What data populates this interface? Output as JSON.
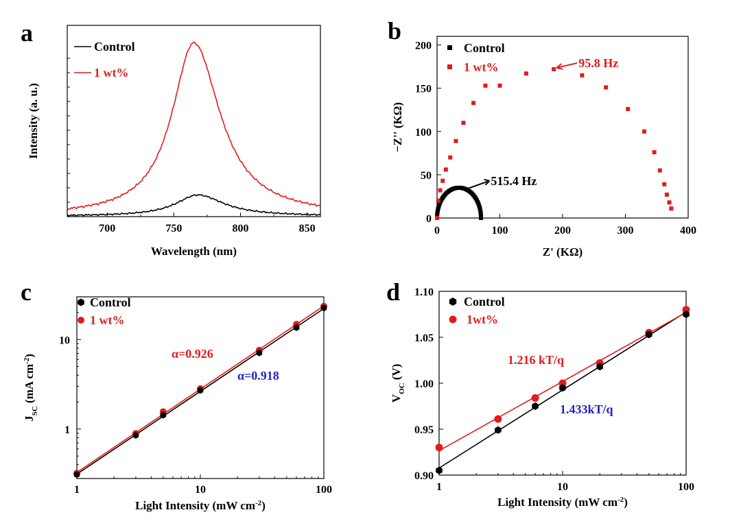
{
  "panels": {
    "a": "a",
    "b": "b",
    "c": "c",
    "d": "d"
  },
  "colors": {
    "control": "#000000",
    "wt": "#e31a1c",
    "blue": "#1f1fcc"
  },
  "chart_data": [
    {
      "id": "a",
      "type": "line",
      "xlabel": "Wavelength (nm)",
      "ylabel": "Intensity (a. u.)",
      "xlim": [
        670,
        860
      ],
      "xticks": [
        700,
        750,
        800,
        850
      ],
      "ylim": [
        0,
        1.1
      ],
      "legend": "top-left",
      "series": [
        {
          "name": "Control",
          "color": "#000000",
          "peak_x": 768,
          "peak_y": 0.125,
          "base": 0.003,
          "width_left": 20,
          "width_right": 24
        },
        {
          "name": "1 wt%",
          "color": "#e31a1c",
          "peak_x": 765,
          "peak_y": 1.0,
          "base": 0.003,
          "width_left": 20,
          "width_right": 24
        }
      ]
    },
    {
      "id": "b",
      "type": "scatter",
      "xlabel": "Z' (KΩ)",
      "ylabel": "−Z'' (KΩ)",
      "xlim": [
        0,
        400
      ],
      "ylim": [
        0,
        210
      ],
      "xticks": [
        0,
        100,
        200,
        300,
        400
      ],
      "yticks": [
        0,
        50,
        100,
        150,
        200
      ],
      "legend": "top-left",
      "series": [
        {
          "name": "Control",
          "color": "#000000",
          "center": 35,
          "radius": 35,
          "npoints": 40
        },
        {
          "name": "1 wt%",
          "color": "#e31a1c",
          "x": [
            0,
            2,
            5,
            9,
            14,
            21,
            30,
            42,
            58,
            77,
            100,
            142,
            186,
            231,
            269,
            304,
            330,
            346,
            355,
            362,
            366,
            370,
            373
          ],
          "y": [
            0,
            20,
            32,
            43,
            56,
            70,
            89,
            110,
            133,
            153,
            153,
            167,
            172,
            165,
            151,
            126,
            100,
            76,
            55,
            39,
            27,
            18,
            11
          ]
        }
      ],
      "annotations": [
        {
          "text": "95.8 Hz",
          "color": "#e31a1c",
          "x": 186,
          "y": 172
        },
        {
          "text": "515.4 Hz",
          "color": "#000000",
          "x": 42,
          "y": 35
        }
      ]
    },
    {
      "id": "c",
      "type": "scatter",
      "xlabel": "Light Intensity (mW cm⁻²)",
      "ylabel": "J_SC (mA cm⁻²)",
      "xscale": "log",
      "yscale": "log",
      "xlim": [
        1,
        100
      ],
      "ylim": [
        0.28,
        30
      ],
      "xticks": [
        1,
        10,
        100
      ],
      "yticks": [
        1,
        10
      ],
      "legend": "top-left",
      "series": [
        {
          "name": "Control",
          "color": "#000000",
          "x": [
            1,
            3,
            5,
            10,
            30,
            60,
            100
          ],
          "y": [
            0.31,
            0.85,
            1.43,
            2.7,
            7.1,
            13.6,
            22.5
          ]
        },
        {
          "name": "1 wt%",
          "color": "#e31a1c",
          "x": [
            1,
            3,
            5,
            10,
            30,
            60,
            100
          ],
          "y": [
            0.32,
            0.89,
            1.56,
            2.82,
            7.6,
            14.8,
            23.6
          ]
        }
      ],
      "annotations": [
        {
          "text": "α=0.926",
          "color": "#e31a1c"
        },
        {
          "text": "α=0.918",
          "color": "#1f1fcc"
        }
      ]
    },
    {
      "id": "d",
      "type": "scatter",
      "xlabel": "Light Intensity (mW cm⁻²)",
      "ylabel": "V_OC (V)",
      "xscale": "log",
      "xlim": [
        1,
        100
      ],
      "ylim": [
        0.9,
        1.1
      ],
      "xticks": [
        1,
        10,
        100
      ],
      "yticks": [
        0.9,
        0.95,
        1.0,
        1.05,
        1.1
      ],
      "legend": "top-left",
      "series": [
        {
          "name": "Control",
          "color": "#000000",
          "x": [
            1,
            3,
            6,
            10,
            20,
            50,
            100
          ],
          "y": [
            0.905,
            0.949,
            0.975,
            0.995,
            1.018,
            1.053,
            1.075
          ]
        },
        {
          "name": "1wt%",
          "color": "#e31a1c",
          "x": [
            1,
            3,
            6,
            10,
            20,
            50,
            100
          ],
          "y": [
            0.93,
            0.961,
            0.984,
            1.0,
            1.022,
            1.055,
            1.08
          ]
        }
      ],
      "annotations": [
        {
          "text": "1.216 kT/q",
          "color": "#e31a1c"
        },
        {
          "text": "1.433kT/q",
          "color": "#1f1fcc"
        }
      ]
    }
  ]
}
